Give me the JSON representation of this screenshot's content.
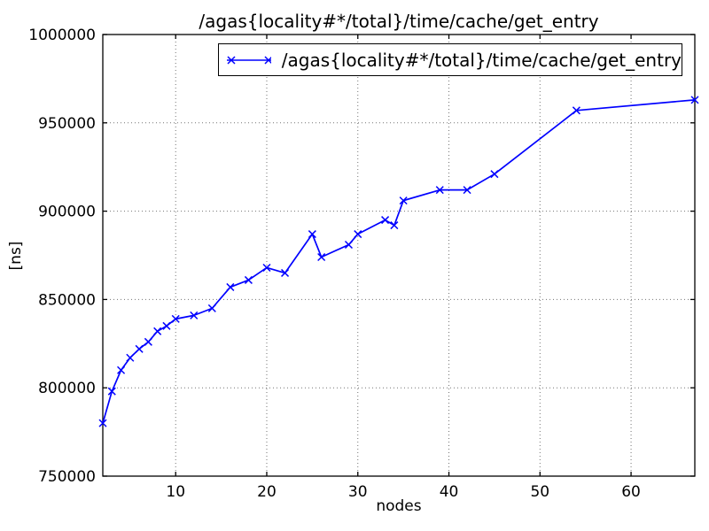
{
  "chart_data": {
    "type": "line",
    "title": "/agas{locality#*/total}/time/cache/get_entry",
    "xlabel": "nodes",
    "ylabel": "[ns]",
    "xlim": [
      2,
      67
    ],
    "ylim": [
      750000,
      1000000
    ],
    "xticks": [
      10,
      20,
      30,
      40,
      50,
      60
    ],
    "yticks": [
      750000,
      800000,
      850000,
      900000,
      950000,
      1000000
    ],
    "grid": true,
    "grid_style": "dotted",
    "background_color": "#ffffff",
    "frame_color": "#000000",
    "legend": {
      "label": "/agas{locality#*/total}/time/cache/get_entry",
      "position": "upper right",
      "marker": "x"
    },
    "series": [
      {
        "name": "/agas{locality#*/total}/time/cache/get_entry",
        "color": "#0000ff",
        "marker": "x",
        "x": [
          2,
          3,
          4,
          5,
          6,
          7,
          8,
          9,
          10,
          12,
          14,
          16,
          18,
          20,
          22,
          25,
          26,
          29,
          30,
          33,
          34,
          35,
          39,
          42,
          45,
          54,
          67
        ],
        "y": [
          780000,
          798000,
          810000,
          817000,
          822000,
          826000,
          832000,
          835000,
          839000,
          841000,
          845000,
          857000,
          861000,
          868000,
          865000,
          887000,
          874000,
          881000,
          887000,
          895000,
          892000,
          906000,
          912000,
          912000,
          921000,
          957000,
          963000
        ]
      }
    ]
  }
}
